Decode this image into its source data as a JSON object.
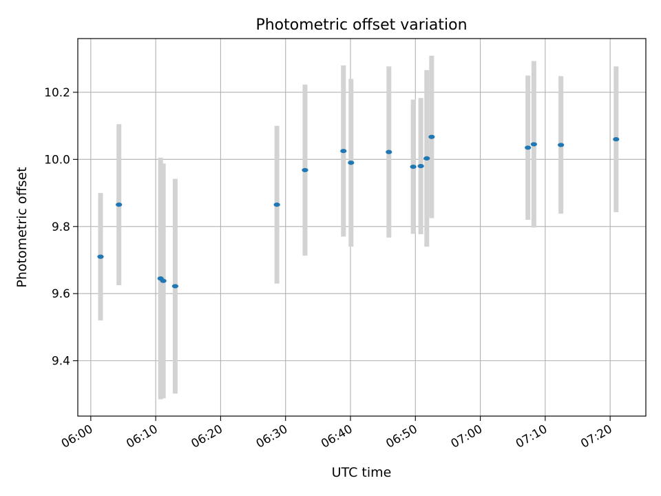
{
  "chart_data": {
    "type": "scatter",
    "title": "Photometric offset variation",
    "xlabel": "UTC time",
    "ylabel": "Photometric offset",
    "x_axis_type": "time",
    "xlim": [
      "05:58:00",
      "07:25:30"
    ],
    "ylim": [
      9.235,
      10.36
    ],
    "x_ticks": [
      "06:00",
      "06:10",
      "06:20",
      "06:30",
      "06:40",
      "06:50",
      "07:00",
      "07:10",
      "07:20"
    ],
    "y_ticks": [
      "9.4",
      "9.6",
      "9.8",
      "10.0",
      "10.2"
    ],
    "grid": true,
    "colors": {
      "marker": "#1f77b4",
      "errorbar": "#d3d3d3",
      "grid": "#b0b0b0"
    },
    "points": [
      {
        "t": "06:01:30",
        "y": 9.71,
        "err": 0.19
      },
      {
        "t": "06:04:20",
        "y": 9.865,
        "err": 0.24
      },
      {
        "t": "06:10:45",
        "y": 9.645,
        "err": 0.36
      },
      {
        "t": "06:11:10",
        "y": 9.638,
        "err": 0.35
      },
      {
        "t": "06:13:00",
        "y": 9.622,
        "err": 0.32
      },
      {
        "t": "06:28:40",
        "y": 9.865,
        "err": 0.235
      },
      {
        "t": "06:33:00",
        "y": 9.968,
        "err": 0.255
      },
      {
        "t": "06:38:55",
        "y": 10.025,
        "err": 0.255
      },
      {
        "t": "06:40:05",
        "y": 9.99,
        "err": 0.25
      },
      {
        "t": "06:45:55",
        "y": 10.022,
        "err": 0.255
      },
      {
        "t": "06:49:40",
        "y": 9.978,
        "err": 0.2
      },
      {
        "t": "06:50:50",
        "y": 9.98,
        "err": 0.203
      },
      {
        "t": "06:51:45",
        "y": 10.003,
        "err": 0.263
      },
      {
        "t": "06:52:30",
        "y": 10.067,
        "err": 0.242
      },
      {
        "t": "07:07:20",
        "y": 10.035,
        "err": 0.215
      },
      {
        "t": "07:08:15",
        "y": 10.045,
        "err": 0.248
      },
      {
        "t": "07:12:25",
        "y": 10.043,
        "err": 0.205
      },
      {
        "t": "07:20:55",
        "y": 10.06,
        "err": 0.217
      }
    ]
  }
}
